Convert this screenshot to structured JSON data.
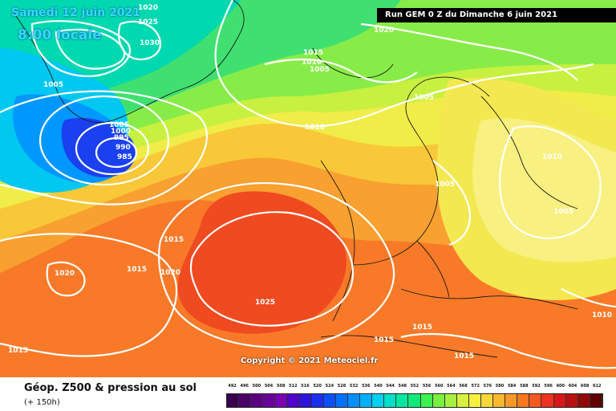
{
  "header": {
    "date": "Samedi 12 juin 2021",
    "time": "8:00 locale",
    "run": "Run GEM 0 Z du Dimanche 6 juin 2021"
  },
  "map": {
    "copyright": "Copyright © 2021 Meteociel.fr",
    "pressure_labels": [
      "1020",
      "1025",
      "1030",
      "1005",
      "1005",
      "1000",
      "995",
      "990",
      "985",
      "1015",
      "1010",
      "1005",
      "1005",
      "1010",
      "1005",
      "1010",
      "1005",
      "1015",
      "1015",
      "1020",
      "1025",
      "1020",
      "1015",
      "1015",
      "1015",
      "1010",
      "1015",
      "1020"
    ]
  },
  "legend": {
    "title": "Géop. Z500 & pression au sol",
    "subtitle": "(+ 150h)",
    "scale_labels": [
      "492",
      "496",
      "500",
      "504",
      "508",
      "512",
      "516",
      "520",
      "524",
      "528",
      "532",
      "536",
      "540",
      "544",
      "548",
      "552",
      "556",
      "560",
      "564",
      "568",
      "572",
      "576",
      "580",
      "584",
      "588",
      "592",
      "596",
      "600",
      "604",
      "608",
      "612"
    ],
    "scale_colors": [
      "#3a0050",
      "#4c0066",
      "#5a0080",
      "#6a009a",
      "#7a00b4",
      "#5000c8",
      "#2a14dc",
      "#1a30f0",
      "#0a50ff",
      "#0070ff",
      "#0090ff",
      "#00b0ff",
      "#00d0f0",
      "#00e0c8",
      "#00e8a0",
      "#10e878",
      "#40f050",
      "#78f040",
      "#a8f040",
      "#d8f040",
      "#f8f040",
      "#f8d838",
      "#f8b830",
      "#f89828",
      "#f87820",
      "#f85820",
      "#f03020",
      "#d81818",
      "#b81010",
      "#900808",
      "#600000"
    ]
  }
}
